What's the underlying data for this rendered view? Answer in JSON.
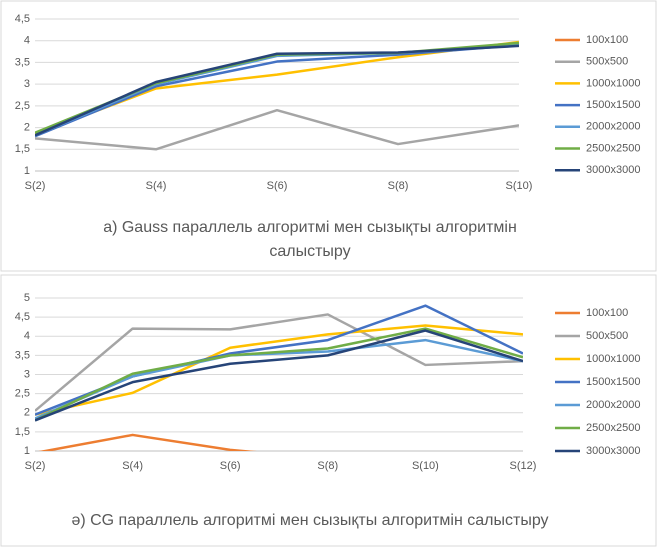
{
  "chart_data": [
    {
      "type": "line",
      "title": "а) Gauss параллель алгоритмі мен сызықты алгоритмін салыстыру",
      "categories": [
        "S(2)",
        "S(4)",
        "S(6)",
        "S(8)",
        "S(10)"
      ],
      "ylim": [
        1,
        4.5
      ],
      "yticks": [
        1,
        {
          "value": 1.5,
          "label": "1,5"
        },
        2,
        {
          "value": 2.5,
          "label": "2,5"
        },
        3,
        {
          "value": 3.5,
          "label": "3,5"
        },
        4,
        {
          "value": 4.5,
          "label": "4,5"
        }
      ],
      "grid": true,
      "legend": "right",
      "series": [
        {
          "name": "100x100",
          "color": "#ED7D31",
          "values": [
            null,
            null,
            null,
            null,
            null
          ]
        },
        {
          "name": "500x500",
          "color": "#A5A5A5",
          "values": [
            1.75,
            1.5,
            2.4,
            1.62,
            2.05
          ]
        },
        {
          "name": "1000x1000",
          "color": "#FFC000",
          "values": [
            1.85,
            2.9,
            3.22,
            3.62,
            3.97
          ]
        },
        {
          "name": "1500x1500",
          "color": "#4472C4",
          "values": [
            1.8,
            2.95,
            3.52,
            3.68,
            3.9
          ]
        },
        {
          "name": "2000x2000",
          "color": "#5B9BD5",
          "values": [
            1.82,
            3.0,
            3.65,
            3.72,
            3.9
          ]
        },
        {
          "name": "2500x2500",
          "color": "#70AD47",
          "values": [
            1.88,
            3.02,
            3.68,
            3.72,
            3.95
          ]
        },
        {
          "name": "3000x3000",
          "color": "#264478",
          "values": [
            1.82,
            3.05,
            3.7,
            3.73,
            3.88
          ]
        }
      ]
    },
    {
      "type": "line",
      "title": "ә) CG параллель алгоритмі мен сызықты алгоритмін салыстыру",
      "categories": [
        "S(2)",
        "S(4)",
        "S(6)",
        "S(8)",
        "S(10)",
        "S(12)"
      ],
      "ylim": [
        1,
        5
      ],
      "yticks": [
        1,
        {
          "value": 1.5,
          "label": "1,5"
        },
        2,
        {
          "value": 2.5,
          "label": "2,5"
        },
        3,
        {
          "value": 3.5,
          "label": "3,5"
        },
        4,
        {
          "value": 4.5,
          "label": "4,5"
        },
        5
      ],
      "grid": true,
      "legend": "right",
      "series": [
        {
          "name": "100x100",
          "color": "#ED7D31",
          "values": [
            0.95,
            1.42,
            1.03,
            0.8,
            null,
            null
          ]
        },
        {
          "name": "500x500",
          "color": "#A5A5A5",
          "values": [
            2.05,
            4.2,
            4.18,
            4.57,
            3.25,
            3.35
          ]
        },
        {
          "name": "1000x1000",
          "color": "#FFC000",
          "values": [
            1.95,
            2.52,
            3.7,
            4.05,
            4.28,
            4.05
          ]
        },
        {
          "name": "1500x1500",
          "color": "#4472C4",
          "values": [
            1.95,
            2.95,
            3.55,
            3.9,
            4.8,
            3.55
          ]
        },
        {
          "name": "2000x2000",
          "color": "#5B9BD5",
          "values": [
            1.85,
            2.95,
            3.5,
            3.6,
            3.9,
            3.35
          ]
        },
        {
          "name": "2500x2500",
          "color": "#70AD47",
          "values": [
            1.8,
            3.02,
            3.5,
            3.68,
            4.2,
            3.45
          ]
        },
        {
          "name": "3000x3000",
          "color": "#264478",
          "values": [
            1.8,
            2.8,
            3.28,
            3.5,
            4.15,
            3.35
          ]
        }
      ]
    }
  ]
}
